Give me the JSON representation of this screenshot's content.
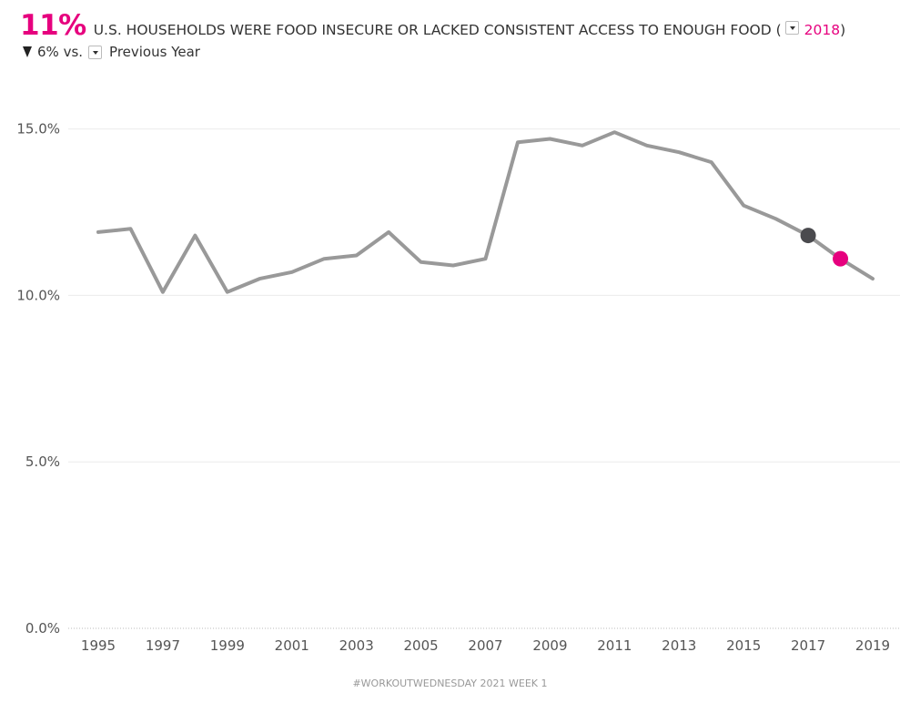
{
  "header": {
    "big_value": "11%",
    "title": "U.S. HOUSEHOLDS WERE FOOD INSECURE OR LACKED CONSISTENT ACCESS TO ENOUGH FOOD (",
    "selected_year": "2018",
    "close_paren": ")",
    "change_text": "6% vs.",
    "comparison": "Previous Year"
  },
  "footer": {
    "text": "#WORKOUTWEDNESDAY 2021 WEEK 1"
  },
  "colors": {
    "accent": "#e6007e",
    "line": "#999999",
    "previous_point": "#4a4a4e"
  },
  "chart_data": {
    "type": "line",
    "title": "",
    "xlabel": "",
    "ylabel": "",
    "x": [
      1995,
      1996,
      1997,
      1998,
      1999,
      2000,
      2001,
      2002,
      2003,
      2004,
      2005,
      2006,
      2007,
      2008,
      2009,
      2010,
      2011,
      2012,
      2013,
      2014,
      2015,
      2016,
      2017,
      2018,
      2019
    ],
    "series": [
      {
        "values": [
          11.9,
          12.0,
          10.1,
          11.8,
          10.1,
          10.5,
          10.7,
          11.1,
          11.2,
          11.9,
          11.0,
          10.9,
          11.1,
          14.6,
          14.7,
          14.5,
          14.9,
          14.5,
          14.3,
          14.0,
          12.7,
          12.3,
          11.8,
          11.1,
          10.5
        ]
      }
    ],
    "highlights": [
      {
        "x": 2017,
        "y": 11.8,
        "role": "previous-year",
        "color": "#4a4a4e"
      },
      {
        "x": 2018,
        "y": 11.1,
        "role": "selected-year",
        "color": "#e6007e"
      }
    ],
    "yticks": [
      0,
      5,
      10,
      15
    ],
    "ytick_labels": [
      "0.0%",
      "5.0%",
      "10.0%",
      "15.0%"
    ],
    "xticks": [
      1995,
      1997,
      1999,
      2001,
      2003,
      2005,
      2007,
      2009,
      2011,
      2013,
      2015,
      2017,
      2019
    ],
    "ylim": [
      0,
      16.0
    ],
    "xlim": [
      1995,
      2019
    ],
    "grid": true,
    "legend": "none"
  }
}
